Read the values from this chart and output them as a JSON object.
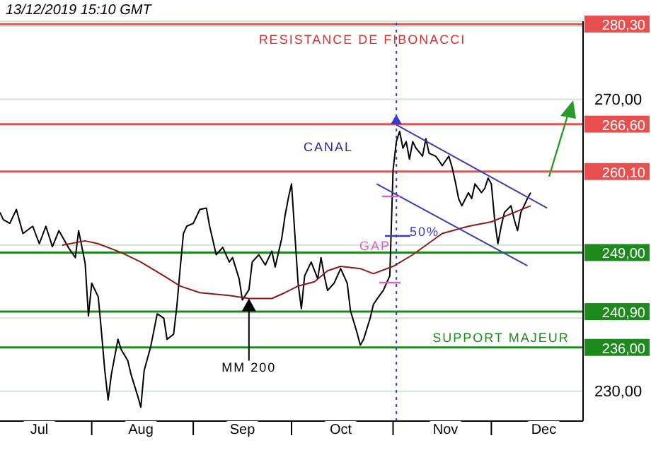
{
  "chart_data": {
    "type": "line",
    "xlim": [
      "2019-07-04",
      "2019-12-29"
    ],
    "ylim": [
      225.9,
      280.7
    ],
    "xticks": [
      {
        "value": "2019-07-16",
        "label": "Jul"
      },
      {
        "value": "2019-08-01",
        "label": null
      },
      {
        "value": "2019-08-16",
        "label": "Aug"
      },
      {
        "value": "2019-09-01",
        "label": null
      },
      {
        "value": "2019-09-16",
        "label": "Sep"
      },
      {
        "value": "2019-10-01",
        "label": null
      },
      {
        "value": "2019-10-16",
        "label": "Oct"
      },
      {
        "value": "2019-11-01",
        "label": null
      },
      {
        "value": "2019-11-17",
        "label": "Nov"
      },
      {
        "value": "2019-12-01",
        "label": null
      },
      {
        "value": "2019-12-17",
        "label": "Dec"
      }
    ],
    "yticks": [
      {
        "value": 230,
        "label": "230,00"
      },
      {
        "value": 240,
        "label": null
      },
      {
        "value": 250,
        "label": null
      },
      {
        "value": 260,
        "label": null
      },
      {
        "value": 270,
        "label": "270,00"
      },
      {
        "value": 280,
        "label": null
      }
    ],
    "grid": "y",
    "series": [
      {
        "color": "#000000",
        "x": [
          "2019-07-04",
          "2019-07-05",
          "2019-07-07",
          "2019-07-09",
          "2019-07-11",
          "2019-07-14",
          "2019-07-16",
          "2019-07-18",
          "2019-07-20",
          "2019-07-22",
          "2019-07-25",
          "2019-07-27",
          "2019-07-28",
          "2019-07-30",
          "2019-07-31",
          "2019-08-01",
          "2019-08-03",
          "2019-08-04",
          "2019-08-05",
          "2019-08-06",
          "2019-08-07",
          "2019-08-09",
          "2019-08-10",
          "2019-08-12",
          "2019-08-13",
          "2019-08-15",
          "2019-08-16",
          "2019-08-17",
          "2019-08-19",
          "2019-08-21",
          "2019-08-23",
          "2019-08-24",
          "2019-08-26",
          "2019-08-27",
          "2019-08-28",
          "2019-08-29",
          "2019-08-30",
          "2019-09-01",
          "2019-09-03",
          "2019-09-05",
          "2019-09-06",
          "2019-09-08",
          "2019-09-10",
          "2019-09-12",
          "2019-09-13",
          "2019-09-15",
          "2019-09-16",
          "2019-09-18",
          "2019-09-19",
          "2019-09-21",
          "2019-09-23",
          "2019-09-25",
          "2019-09-26",
          "2019-09-28",
          "2019-09-29",
          "2019-09-30",
          "2019-10-01",
          "2019-10-02",
          "2019-10-03",
          "2019-10-04",
          "2019-10-05",
          "2019-10-07",
          "2019-10-09",
          "2019-10-10",
          "2019-10-11",
          "2019-10-12",
          "2019-10-14",
          "2019-10-16",
          "2019-10-18",
          "2019-10-19",
          "2019-10-21",
          "2019-10-22",
          "2019-10-23",
          "2019-10-25",
          "2019-10-26",
          "2019-10-28",
          "2019-10-29",
          "2019-10-30",
          "2019-10-31",
          "2019-11-01",
          "2019-11-02",
          "2019-11-03",
          "2019-11-04",
          "2019-11-05",
          "2019-11-06",
          "2019-11-07",
          "2019-11-08",
          "2019-11-10",
          "2019-11-11",
          "2019-11-12",
          "2019-11-14",
          "2019-11-15",
          "2019-11-16",
          "2019-11-18",
          "2019-11-19",
          "2019-11-20",
          "2019-11-21",
          "2019-11-22",
          "2019-11-24",
          "2019-11-25",
          "2019-11-26",
          "2019-11-28",
          "2019-11-29",
          "2019-11-30",
          "2019-12-01",
          "2019-12-02",
          "2019-12-03",
          "2019-12-04",
          "2019-12-05",
          "2019-12-07",
          "2019-12-08",
          "2019-12-09",
          "2019-12-10",
          "2019-12-11",
          "2019-12-12",
          "2019-12-13"
        ],
        "values": [
          254.5,
          253.5,
          253,
          254.9,
          251.6,
          252.6,
          250.2,
          252.6,
          249.8,
          252,
          249.6,
          248.3,
          252,
          247.5,
          240.3,
          244.8,
          242.9,
          238,
          232.8,
          228.8,
          232.3,
          237.1,
          235.7,
          234.2,
          232.3,
          229.4,
          227.8,
          232.8,
          236.1,
          240.6,
          240,
          237.1,
          237.8,
          241.7,
          246.8,
          251.6,
          252.6,
          253,
          254.9,
          255.1,
          252.6,
          248.7,
          249.7,
          247.7,
          248.3,
          245.4,
          242.5,
          243.9,
          247.7,
          248.7,
          247.3,
          249.2,
          247,
          250.9,
          254,
          256.4,
          258.4,
          251.6,
          244.8,
          241.3,
          245.8,
          247.7,
          245.4,
          248.3,
          245.8,
          243.8,
          244.8,
          246.8,
          244.8,
          241,
          238,
          236.3,
          237.1,
          240,
          241.9,
          243.2,
          243.8,
          244.8,
          245.8,
          260.3,
          264.2,
          265.6,
          263.3,
          264.2,
          261.8,
          264.2,
          263.3,
          262.2,
          264.6,
          262.6,
          262.2,
          261.6,
          260.9,
          262.2,
          260.7,
          258.7,
          256.4,
          255.4,
          257.2,
          256.4,
          258.4,
          257.2,
          257.8,
          259.2,
          258.4,
          253.5,
          250.2,
          252.6,
          254.5,
          255.4,
          253.5,
          252,
          254.5,
          255.4,
          256.4,
          257.2
        ]
      },
      {
        "color": "#8b1a1a",
        "x": [
          "2019-07-23",
          "2019-07-30",
          "2019-08-03",
          "2019-08-10",
          "2019-08-16",
          "2019-08-23",
          "2019-08-28",
          "2019-09-03",
          "2019-09-12",
          "2019-09-18",
          "2019-09-25",
          "2019-09-29",
          "2019-10-03",
          "2019-10-08",
          "2019-10-12",
          "2019-10-16",
          "2019-10-22",
          "2019-10-26",
          "2019-11-01",
          "2019-11-07",
          "2019-11-16",
          "2019-11-24",
          "2019-12-01",
          "2019-12-08",
          "2019-12-13"
        ],
        "values": [
          250,
          250.6,
          250.2,
          249,
          247.7,
          245.8,
          244.4,
          243.5,
          243.1,
          242.7,
          242.7,
          243.5,
          244.4,
          245,
          246.5,
          247.1,
          246.8,
          246.1,
          247.1,
          248.7,
          251.6,
          252.6,
          253.2,
          254.5,
          255.4
        ]
      },
      {
        "color": "#3b3bb5",
        "x": [
          "2019-11-02",
          "2019-12-18"
        ],
        "values": [
          266.5,
          255.1
        ]
      },
      {
        "color": "#3b3bb5",
        "x": [
          "2019-10-27",
          "2019-12-12"
        ],
        "values": [
          258.4,
          247.2
        ]
      }
    ],
    "ref_lines": [
      {
        "axis": "y",
        "value": 280.3,
        "label": "280,30",
        "color": "#e8504f"
      },
      {
        "axis": "y",
        "value": 266.6,
        "label": "266,60",
        "color": "#e8504f"
      },
      {
        "axis": "y",
        "value": 260.1,
        "label": "260,10",
        "color": "#e8504f"
      },
      {
        "axis": "y",
        "value": 249,
        "label": "249,00",
        "color": "#1e8a1e"
      },
      {
        "axis": "y",
        "value": 240.9,
        "label": "240,90",
        "color": "#1e8a1e"
      },
      {
        "axis": "y",
        "value": 236,
        "label": "236,00",
        "color": "#1e8a1e"
      },
      {
        "axis": "x",
        "value": "2019-11-02",
        "color": "#3a3ad0",
        "line_style": "dotted"
      }
    ],
    "annotations": [
      "13/12/2019 15:10 GMT",
      "RESISTANCE DE FIBONACCI",
      "CANAL",
      "50%",
      "GAP",
      {
        "text": "MM 200",
        "x": "2019-09-18",
        "y": 242.7
      },
      "SUPPORT MAJEUR"
    ]
  }
}
